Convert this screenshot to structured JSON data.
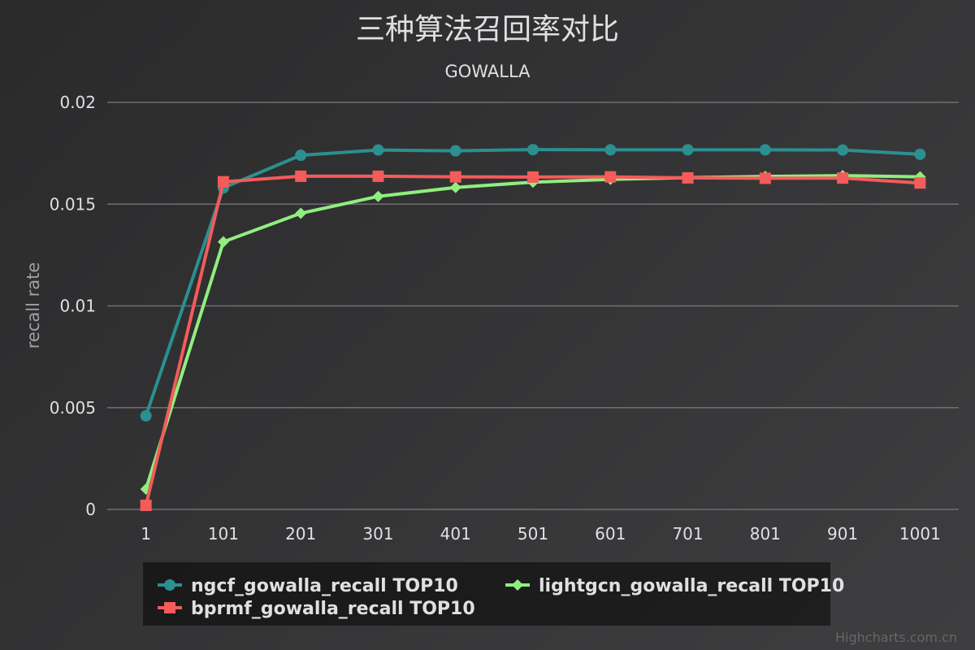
{
  "chart_data": {
    "type": "line",
    "title": "三种算法召回率对比",
    "subtitle": "GOWALLA",
    "xlabel": "",
    "ylabel": "recall rate",
    "ylim": [
      0,
      0.02
    ],
    "yticks": [
      "0",
      "0.005",
      "0.01",
      "0.015",
      "0.02"
    ],
    "ytick_values": [
      0,
      0.005,
      0.01,
      0.015,
      0.02
    ],
    "categories": [
      "1",
      "101",
      "201",
      "301",
      "401",
      "501",
      "601",
      "701",
      "801",
      "901",
      "1001"
    ],
    "grid": true,
    "legend_position": "bottom",
    "series": [
      {
        "name": "ngcf_gowalla_recall TOP10",
        "color": "#2b908f",
        "marker": "circle",
        "values": [
          0.0046,
          0.0158,
          0.0174,
          0.01766,
          0.01762,
          0.01768,
          0.01767,
          0.01767,
          0.01767,
          0.01766,
          0.01745
        ]
      },
      {
        "name": "lightgcn_gowalla_recall TOP10",
        "color": "#90ee7e",
        "marker": "diamond",
        "values": [
          0.001,
          0.01315,
          0.01455,
          0.01538,
          0.01582,
          0.01608,
          0.01622,
          0.0163,
          0.01636,
          0.0164,
          0.01634
        ]
      },
      {
        "name": "bprmf_gowalla_recall TOP10",
        "color": "#f45b5b",
        "marker": "square",
        "values": [
          0.0002,
          0.0161,
          0.01637,
          0.01637,
          0.01634,
          0.01633,
          0.01634,
          0.01629,
          0.01627,
          0.01628,
          0.01604
        ]
      }
    ]
  },
  "credits": "Highcharts.com.cn",
  "colors": {
    "background": "#2b2b2e",
    "grid": "#707073",
    "text": "#e0e0e3"
  }
}
